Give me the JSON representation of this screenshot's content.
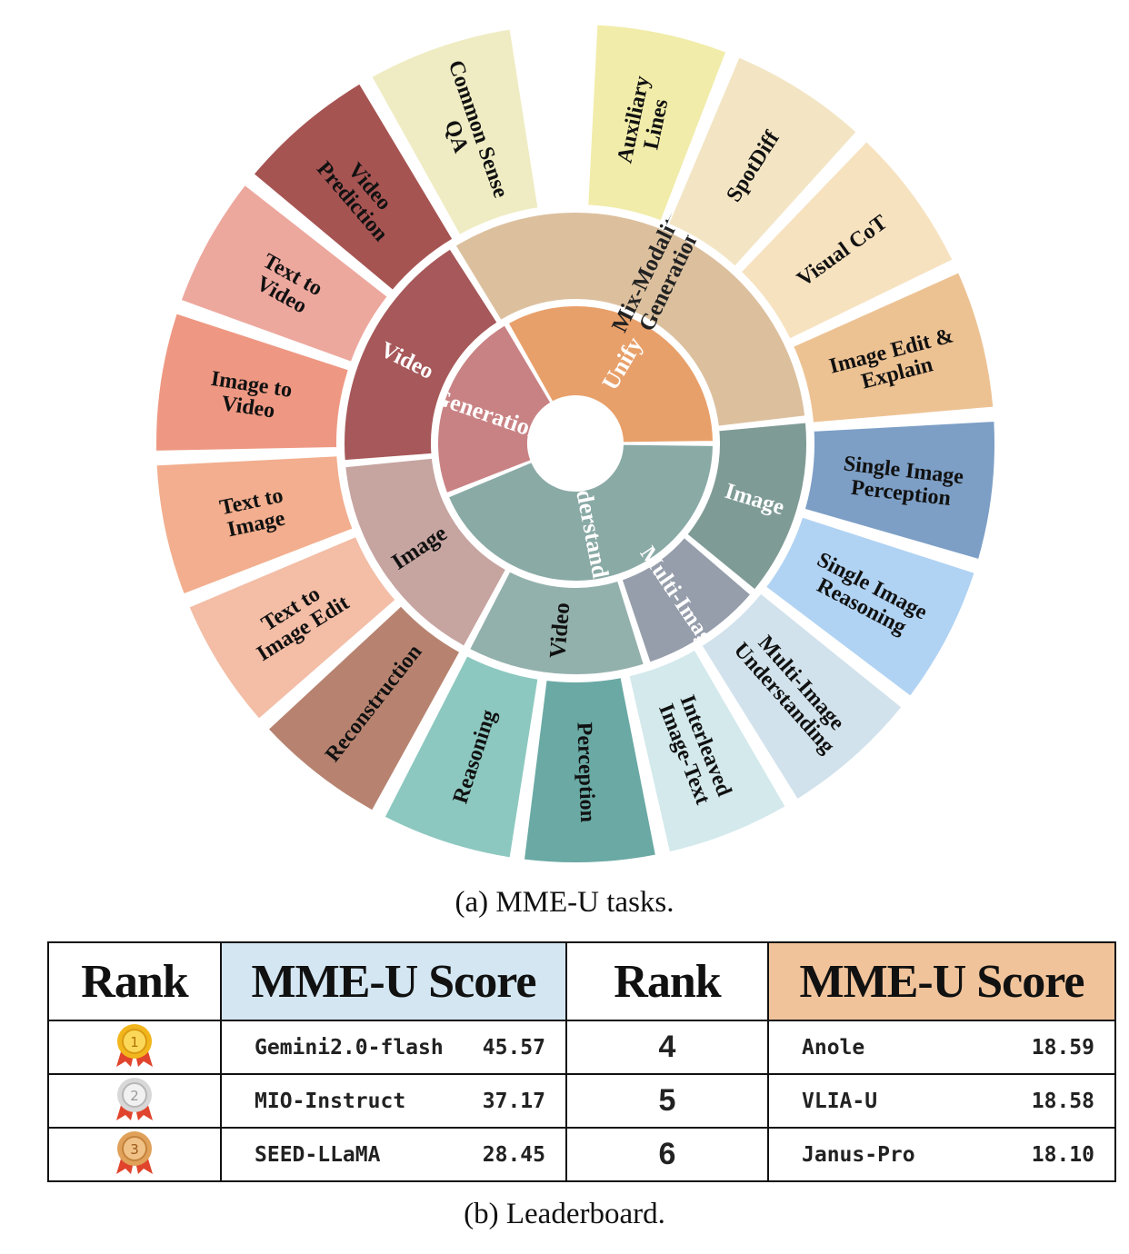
{
  "wheel": {
    "center": [
      {
        "label": "Unify",
        "color": "#e8a06a"
      },
      {
        "label": "Understanding",
        "color": "#8aaaa6"
      },
      {
        "label": "Generation",
        "color": "#c98284"
      }
    ],
    "middle": [
      {
        "label": "Mix-Modality Generation",
        "color": "#dcc09e"
      },
      {
        "label": "Image",
        "color": "#7f9b96"
      },
      {
        "label": "Multi-Image",
        "color": "#969eab"
      },
      {
        "label": "Video",
        "color": "#93b1ac"
      },
      {
        "label": "Image",
        "color": "#c6a4a0"
      },
      {
        "label": "Video",
        "color": "#a7585a"
      }
    ],
    "outer": [
      {
        "label": "Auxiliary Lines",
        "color": "#f1eca9"
      },
      {
        "label": "SpotDiff",
        "color": "#f3e5c4"
      },
      {
        "label": "Visual CoT",
        "color": "#f7e2c0"
      },
      {
        "label": "Image Edit & Explain",
        "color": "#edc293"
      },
      {
        "label": "Single Image Perception",
        "color": "#7d9fc6"
      },
      {
        "label": "Single Image Reasoning",
        "color": "#b1d3f3"
      },
      {
        "label": "Multi-Image Understanding",
        "color": "#d1e2ec"
      },
      {
        "label": "Interleaved Image-Text",
        "color": "#d3e9ec"
      },
      {
        "label": "Perception",
        "color": "#6aa9a4"
      },
      {
        "label": "Reasoning",
        "color": "#8cc8c0"
      },
      {
        "label": "Reconstruction",
        "color": "#b78370"
      },
      {
        "label": "Text to Image Edit",
        "color": "#f3bda6"
      },
      {
        "label": "Text to Image",
        "color": "#f2ae8e"
      },
      {
        "label": "Image to Video",
        "color": "#ee9883"
      },
      {
        "label": "Text to Video",
        "color": "#eda89e"
      },
      {
        "label": "Video Prediction",
        "color": "#a65452"
      },
      {
        "label": "Common Sense QA",
        "color": "#efecc3"
      }
    ]
  },
  "caption_a": "(a) MME-U tasks.",
  "caption_b": "(b) Leaderboard.",
  "leaderboard": {
    "headers": [
      "Rank",
      "MME-U Score",
      "Rank",
      "MME-U Score"
    ],
    "rows": [
      {
        "medal": "gold-medal-1",
        "medal_text": "1",
        "left_model": "Gemini2.0-flash",
        "left_score": "45.57",
        "right_rank": "4",
        "right_model": "Anole",
        "right_score": "18.59"
      },
      {
        "medal": "silver-medal-2",
        "medal_text": "2",
        "left_model": "MIO-Instruct",
        "left_score": "37.17",
        "right_rank": "5",
        "right_model": "VLIA-U",
        "right_score": "18.58"
      },
      {
        "medal": "bronze-medal-3",
        "medal_text": "3",
        "left_model": "SEED-LLaMA",
        "left_score": "28.45",
        "right_rank": "6",
        "right_model": "Janus-Pro",
        "right_score": "18.10"
      }
    ]
  }
}
